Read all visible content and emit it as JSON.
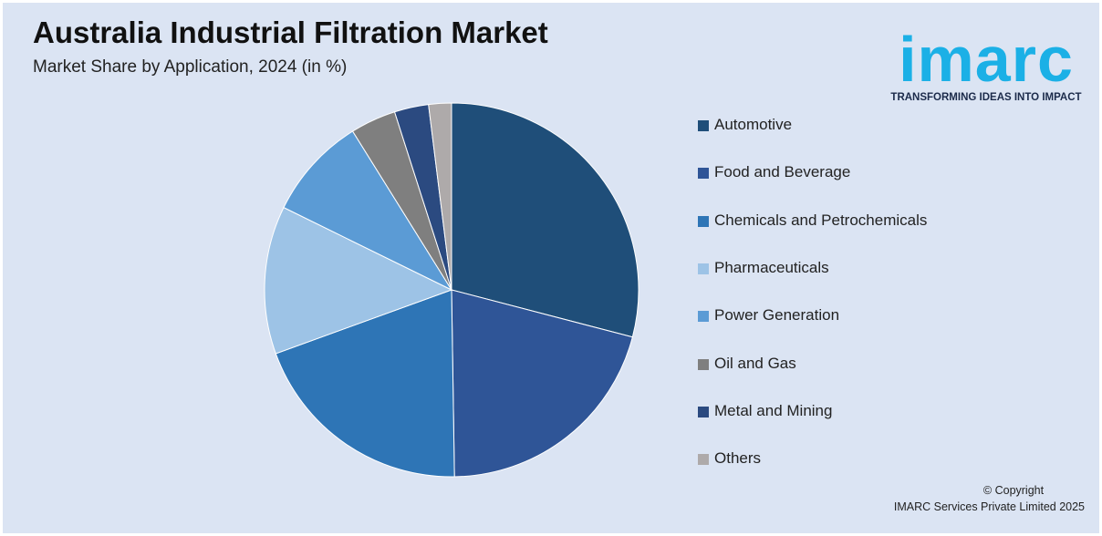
{
  "header": {
    "title": "Australia Industrial Filtration Market",
    "subtitle": "Market Share by Application, 2024 (in %)"
  },
  "logo": {
    "word": "imarc",
    "tagline": "TRANSFORMING IDEAS INTO IMPACT",
    "color": "#1bb0e6"
  },
  "footer": {
    "copyright_line1": "© Copyright",
    "copyright_line2": "IMARC Services Private Limited 2025"
  },
  "chart_data": {
    "type": "pie",
    "title": "Australia Industrial Filtration Market",
    "subtitle": "Market Share by Application, 2024 (in %)",
    "legend_position": "right",
    "categories": [
      "Automotive",
      "Food and Beverage",
      "Chemicals and Petrochemicals",
      "Pharmaceuticals",
      "Power Generation",
      "Oil and Gas",
      "Metal and Mining",
      "Others"
    ],
    "values": [
      29.5,
      21,
      20,
      13,
      9,
      4,
      3,
      2
    ],
    "colors": [
      "#1f4e79",
      "#2f5597",
      "#2e75b6",
      "#9dc3e6",
      "#5b9bd5",
      "#7f7f7f",
      "#2b4a80",
      "#aeaaaa"
    ]
  }
}
